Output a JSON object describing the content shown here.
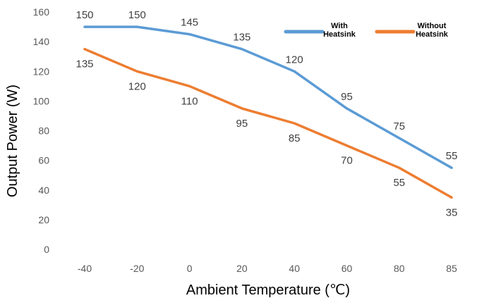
{
  "chart_data": {
    "type": "line",
    "categories": [
      "-40",
      "-20",
      "0",
      "20",
      "40",
      "60",
      "80",
      "85"
    ],
    "series": [
      {
        "name_lines": [
          "With",
          "Heatsink"
        ],
        "values": [
          150,
          150,
          145,
          135,
          120,
          95,
          75,
          55
        ],
        "color": "#5B9BD5",
        "label_position": "above"
      },
      {
        "name_lines": [
          "Without",
          "Heatsink"
        ],
        "values": [
          135,
          120,
          110,
          95,
          85,
          70,
          55,
          35
        ],
        "color": "#ED7D31",
        "label_position": "below"
      }
    ],
    "xlabel": "Ambient Temperature (℃)",
    "ylabel": "Output Power (W)",
    "ylim": [
      0,
      160
    ],
    "yticks": [
      0,
      20,
      40,
      60,
      80,
      100,
      120,
      140,
      160
    ],
    "grid": false,
    "legend": "top-right"
  }
}
